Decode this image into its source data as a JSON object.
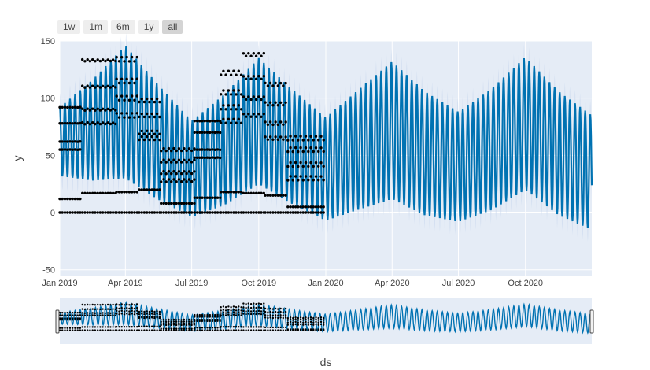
{
  "range_buttons": [
    {
      "label": "1w",
      "active": false
    },
    {
      "label": "1m",
      "active": false
    },
    {
      "label": "6m",
      "active": false
    },
    {
      "label": "1y",
      "active": false
    },
    {
      "label": "all",
      "active": true
    }
  ],
  "colors": {
    "plot_bg": "#e5ecf6",
    "grid": "#ffffff",
    "forecast_line": "#0072b2",
    "uncertainty_band": "#c9d9ee",
    "actual_points": "#000000"
  },
  "chart_data": {
    "type": "line",
    "xlabel": "ds",
    "ylabel": "y",
    "x_range": [
      "2019-01-01",
      "2020-12-31"
    ],
    "ylim": [
      -55,
      150
    ],
    "yticks": [
      -50,
      0,
      50,
      100,
      150
    ],
    "xticks": [
      {
        "date": "2019-01-01",
        "label": "Jan 2019"
      },
      {
        "date": "2019-04-01",
        "label": "Apr 2019"
      },
      {
        "date": "2019-07-01",
        "label": "Jul 2019"
      },
      {
        "date": "2019-10-01",
        "label": "Oct 2019"
      },
      {
        "date": "2020-01-01",
        "label": "Jan 2020"
      },
      {
        "date": "2020-04-01",
        "label": "Apr 2020"
      },
      {
        "date": "2020-07-01",
        "label": "Jul 2020"
      },
      {
        "date": "2020-10-01",
        "label": "Oct 2020"
      }
    ],
    "grid": true,
    "series": [
      {
        "kind": "forecast",
        "style": "line with uncertainty band",
        "seasonal_mean": [
          {
            "date": "2019-01-01",
            "y": 62
          },
          {
            "date": "2019-02-15",
            "y": 72
          },
          {
            "date": "2019-04-01",
            "y": 88
          },
          {
            "date": "2019-05-15",
            "y": 62
          },
          {
            "date": "2019-07-01",
            "y": 38
          },
          {
            "date": "2019-08-15",
            "y": 55
          },
          {
            "date": "2019-10-01",
            "y": 80
          },
          {
            "date": "2019-11-15",
            "y": 58
          },
          {
            "date": "2020-01-01",
            "y": 38
          },
          {
            "date": "2020-02-15",
            "y": 55
          },
          {
            "date": "2020-04-01",
            "y": 72
          },
          {
            "date": "2020-05-15",
            "y": 52
          },
          {
            "date": "2020-07-01",
            "y": 40
          },
          {
            "date": "2020-08-15",
            "y": 55
          },
          {
            "date": "2020-10-01",
            "y": 78
          },
          {
            "date": "2020-11-15",
            "y": 52
          },
          {
            "date": "2020-12-31",
            "y": 35
          }
        ],
        "weekly_amplitude": [
          {
            "date": "2019-01-01",
            "y": 30
          },
          {
            "date": "2019-04-01",
            "y": 58
          },
          {
            "date": "2019-07-01",
            "y": 42
          },
          {
            "date": "2019-10-01",
            "y": 55
          },
          {
            "date": "2020-01-01",
            "y": 45
          },
          {
            "date": "2020-04-01",
            "y": 60
          },
          {
            "date": "2020-07-01",
            "y": 48
          },
          {
            "date": "2020-10-01",
            "y": 58
          },
          {
            "date": "2020-12-31",
            "y": 50
          }
        ]
      },
      {
        "kind": "actual",
        "style": "markers",
        "date_range": [
          "2019-01-01",
          "2019-12-31"
        ],
        "level_groups": [
          {
            "segment": "2019-01-01..2019-02-01",
            "levels": [
              92,
              78,
              62,
              55,
              12,
              0
            ]
          },
          {
            "segment": "2019-02-01..2019-03-20",
            "levels": [
              133,
              110,
              90,
              78,
              17,
              0
            ]
          },
          {
            "segment": "2019-03-20..2019-04-20",
            "levels": [
              134,
              115,
              100,
              85,
              18,
              0
            ]
          },
          {
            "segment": "2019-04-20..2019-05-20",
            "levels": [
              98,
              85,
              70,
              65,
              20,
              0
            ]
          },
          {
            "segment": "2019-05-20..2019-07-05",
            "levels": [
              55,
              45,
              35,
              28,
              8,
              0
            ]
          },
          {
            "segment": "2019-07-05..2019-08-10",
            "levels": [
              80,
              70,
              55,
              48,
              13,
              0
            ]
          },
          {
            "segment": "2019-08-10..2019-09-10",
            "levels": [
              122,
              105,
              92,
              80,
              18,
              0
            ]
          },
          {
            "segment": "2019-09-10..2019-10-10",
            "levels": [
              138,
              118,
              100,
              85,
              17,
              0
            ]
          },
          {
            "segment": "2019-10-10..2019-11-10",
            "levels": [
              112,
              95,
              78,
              65,
              15,
              0
            ]
          },
          {
            "segment": "2019-11-10..2019-12-31",
            "levels": [
              65,
              55,
              42,
              30,
              5,
              0
            ]
          }
        ]
      }
    ],
    "range_slider": true
  }
}
